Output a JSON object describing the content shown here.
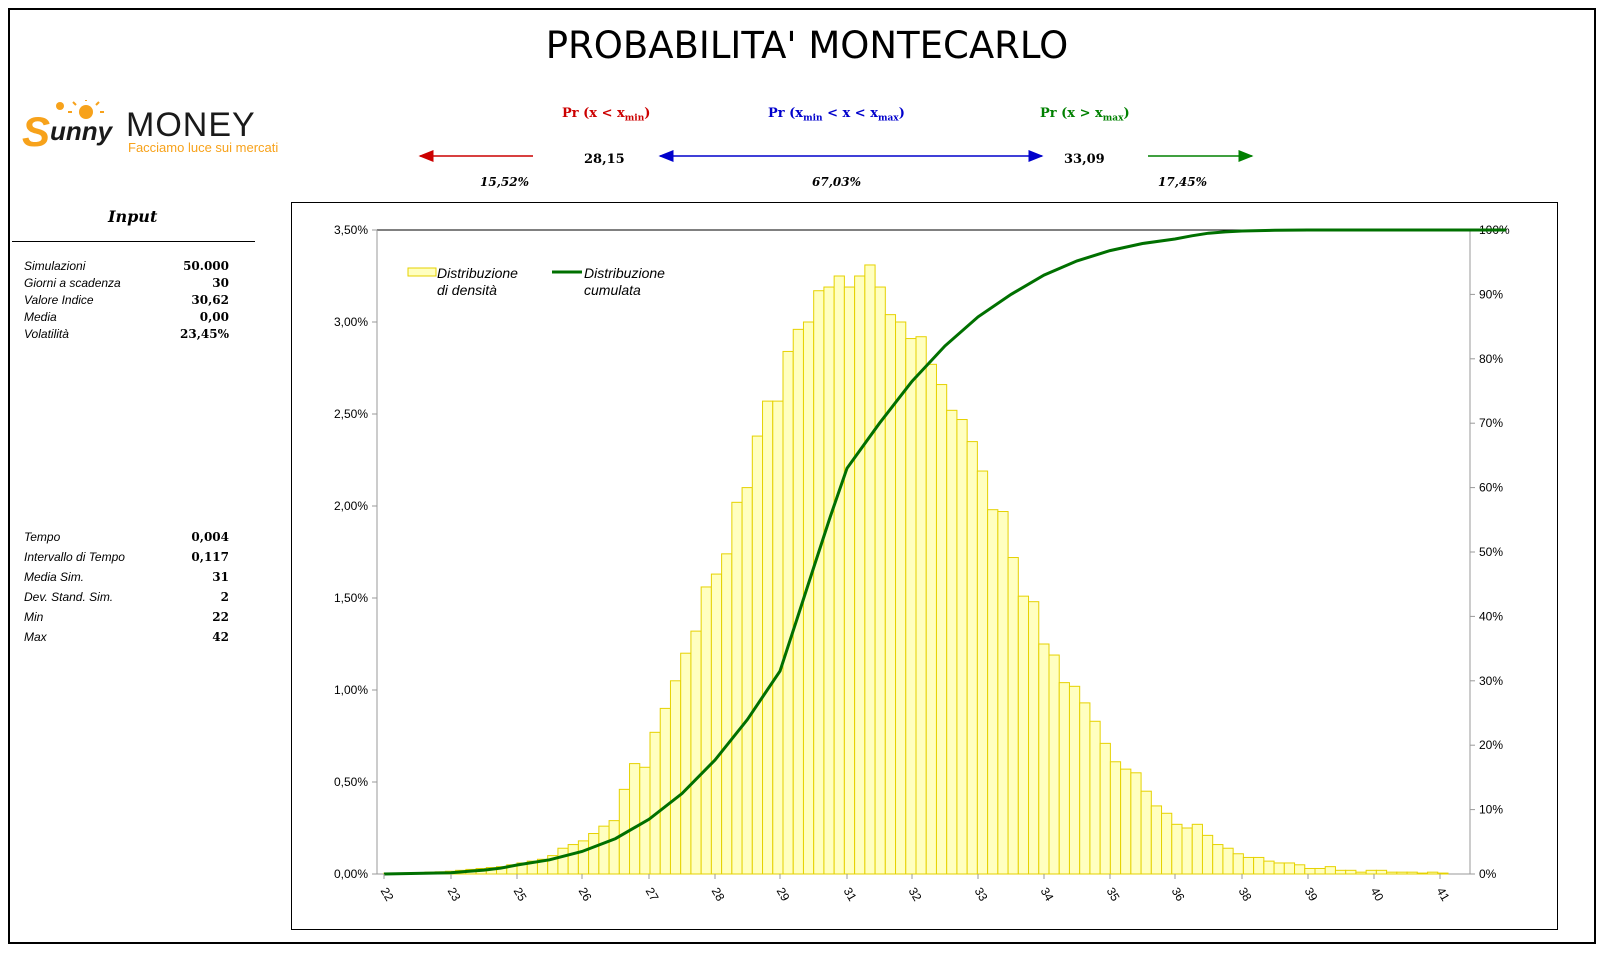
{
  "title": "PROBABILITA' MONTECARLO",
  "logo": {
    "word1": "unny",
    "initial": "S",
    "word2": "MONEY",
    "tagline": "Facciamo luce sui mercati"
  },
  "probabilities": {
    "left": {
      "label_pre": "Pr (x < x",
      "label_sub": "min",
      "label_post": ")",
      "pct": "15,52%",
      "color": "#cc0000"
    },
    "middle": {
      "label_pre": "Pr (x",
      "label_sub1": "min",
      "label_mid": " < x < x",
      "label_sub2": "max",
      "label_post": ")",
      "pct": "67,03%",
      "color": "#0000cc"
    },
    "right": {
      "label_pre": "Pr (x > x",
      "label_sub": "max",
      "label_post": ")",
      "pct": "17,45%",
      "color": "#008000"
    },
    "xmin": "28,15",
    "xmax": "33,09"
  },
  "input": {
    "title": "Input",
    "params1": [
      {
        "k": "Simulazioni",
        "v": "50.000"
      },
      {
        "k": "Giorni a scadenza",
        "v": "30"
      },
      {
        "k": "Valore Indice",
        "v": "30,62"
      },
      {
        "k": "Media",
        "v": "0,00"
      },
      {
        "k": "Volatilità",
        "v": "23,45%"
      }
    ],
    "params2": [
      {
        "k": "Tempo",
        "v": "0,004"
      },
      {
        "k": "Intervallo di Tempo",
        "v": "0,117"
      },
      {
        "k": "Media Sim.",
        "v": "31"
      },
      {
        "k": "Dev. Stand. Sim.",
        "v": "2"
      },
      {
        "k": "Min",
        "v": "22"
      },
      {
        "k": "Max",
        "v": "42"
      }
    ]
  },
  "chart_data": {
    "type": "bar",
    "x_ticks": [
      "22",
      "23",
      "25",
      "26",
      "27",
      "28",
      "29",
      "31",
      "32",
      "33",
      "34",
      "35",
      "36",
      "38",
      "39",
      "40",
      "41"
    ],
    "y_left_ticks": [
      "0,00%",
      "0,50%",
      "1,00%",
      "1,50%",
      "2,00%",
      "2,50%",
      "3,00%",
      "3,50%"
    ],
    "y_right_ticks": [
      "0%",
      "10%",
      "20%",
      "30%",
      "40%",
      "50%",
      "60%",
      "70%",
      "80%",
      "90%",
      "100%"
    ],
    "ylim_left": [
      0,
      3.5
    ],
    "ylim_right": [
      0,
      100
    ],
    "legend": {
      "density": [
        "Distribuzione",
        "di densità"
      ],
      "cumulative": [
        "Distribuzione",
        "cumulata"
      ]
    },
    "colors": {
      "bar_fill": "#ffffc0",
      "bar_stroke": "#e6d200",
      "line": "#007000"
    },
    "density": [
      0.005,
      0.005,
      0.006,
      0.008,
      0.01,
      0.012,
      0.015,
      0.02,
      0.025,
      0.03,
      0.035,
      0.04,
      0.05,
      0.06,
      0.07,
      0.08,
      0.1,
      0.14,
      0.16,
      0.18,
      0.22,
      0.26,
      0.29,
      0.46,
      0.6,
      0.58,
      0.77,
      0.9,
      1.05,
      1.2,
      1.32,
      1.56,
      1.63,
      1.74,
      2.02,
      2.1,
      2.38,
      2.57,
      2.57,
      2.84,
      2.96,
      3.0,
      3.17,
      3.19,
      3.25,
      3.19,
      3.25,
      3.31,
      3.19,
      3.04,
      3.0,
      2.91,
      2.92,
      2.77,
      2.66,
      2.52,
      2.47,
      2.35,
      2.19,
      1.98,
      1.97,
      1.72,
      1.51,
      1.48,
      1.25,
      1.19,
      1.04,
      1.02,
      0.93,
      0.83,
      0.71,
      0.61,
      0.57,
      0.55,
      0.45,
      0.37,
      0.33,
      0.27,
      0.25,
      0.27,
      0.21,
      0.16,
      0.14,
      0.11,
      0.09,
      0.09,
      0.07,
      0.06,
      0.06,
      0.05,
      0.03,
      0.03,
      0.04,
      0.02,
      0.02,
      0.01,
      0.02,
      0.02,
      0.01,
      0.01,
      0.01,
      0.005,
      0.01,
      0.005
    ],
    "cumulative": [
      [
        22,
        0
      ],
      [
        22.5,
        0.1
      ],
      [
        23,
        0.2
      ],
      [
        23.5,
        0.4
      ],
      [
        24,
        0.6
      ],
      [
        24.5,
        0.9
      ],
      [
        25,
        1.4
      ],
      [
        25.5,
        2.2
      ],
      [
        26,
        3.5
      ],
      [
        26.5,
        5.5
      ],
      [
        27,
        8.5
      ],
      [
        27.5,
        12.5
      ],
      [
        28,
        17.7
      ],
      [
        28.5,
        24.0
      ],
      [
        29,
        31.5
      ],
      [
        29.5,
        39.5
      ],
      [
        30,
        47.5
      ],
      [
        30.5,
        55.5
      ],
      [
        31,
        63.0
      ],
      [
        31.5,
        70.0
      ],
      [
        32,
        76.5
      ],
      [
        32.5,
        82.0
      ],
      [
        33,
        86.5
      ],
      [
        33.5,
        90.0
      ],
      [
        34,
        93.0
      ],
      [
        34.5,
        95.2
      ],
      [
        35,
        96.8
      ],
      [
        35.5,
        97.9
      ],
      [
        36,
        98.6
      ],
      [
        36.5,
        99.1
      ],
      [
        37,
        99.5
      ],
      [
        37.5,
        99.7
      ],
      [
        38,
        99.85
      ],
      [
        38.5,
        99.95
      ],
      [
        39,
        100
      ],
      [
        42,
        100
      ]
    ]
  }
}
